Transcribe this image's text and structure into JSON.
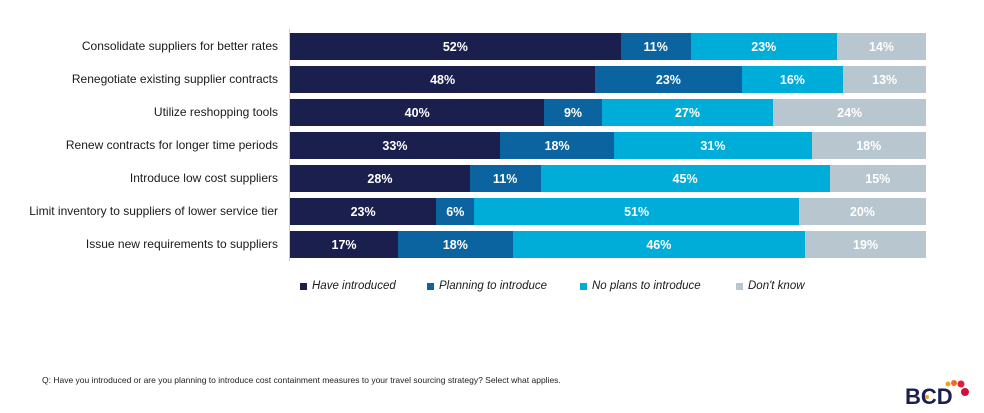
{
  "chart_data": {
    "type": "bar",
    "orientation": "horizontal",
    "stacked": true,
    "categories": [
      "Consolidate suppliers for better rates",
      "Renegotiate existing supplier contracts",
      "Utilize reshopping tools",
      "Renew contracts for longer time periods",
      "Introduce low cost suppliers",
      "Limit inventory to suppliers of lower service tier",
      "Issue new requirements to suppliers"
    ],
    "series": [
      {
        "name": "Have introduced",
        "color": "#1a1f4e",
        "values": [
          52,
          48,
          40,
          33,
          28,
          23,
          17
        ]
      },
      {
        "name": "Planning to introduce",
        "color": "#0b64a0",
        "values": [
          11,
          23,
          9,
          18,
          11,
          6,
          18
        ]
      },
      {
        "name": "No plans to introduce",
        "color": "#00acd8",
        "values": [
          23,
          16,
          27,
          31,
          45,
          51,
          46
        ]
      },
      {
        "name": "Don't know",
        "color": "#b8c6cf",
        "values": [
          14,
          13,
          24,
          18,
          15,
          20,
          19
        ]
      }
    ],
    "unit": "%",
    "legend": "bottom",
    "grid": false
  },
  "footer": {
    "question": "Q: Have you introduced or are you planning to introduce cost containment measures to your travel sourcing strategy? Select what applies."
  },
  "logo": {
    "text": "BCD"
  }
}
